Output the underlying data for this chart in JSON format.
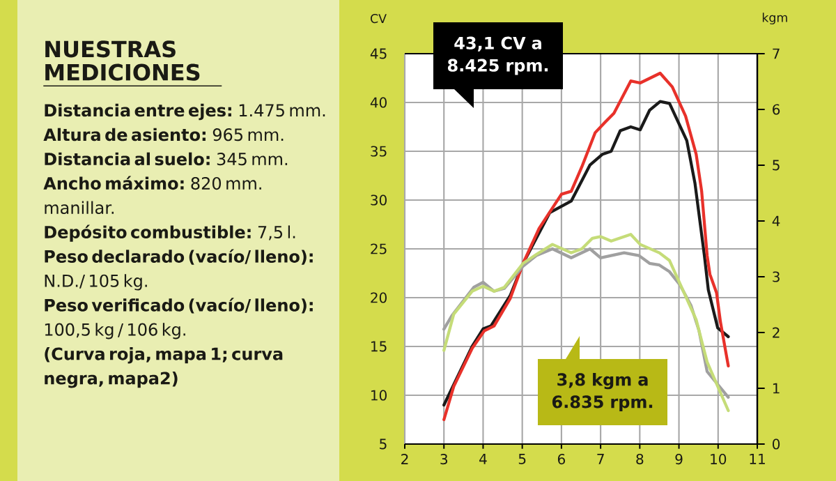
{
  "chart_data": [
    {
      "type": "other",
      "title": "NUESTRAS MEDICIONES",
      "annotations": [
        "**Distancia entre ejes:** 1.475 mm.",
        "**Altura de asiento:** 965 mm.",
        "**Distancia al suelo:** 345 mm.",
        "**Ancho máximo:** 820 mm. manillar.",
        "**Depósito combustible:** 7,5 l.",
        "**Peso declarado (vacío/ lleno):** N.D./ 105 kg.",
        "**Peso verificado (vacío/ lleno):** 100,5 kg / 106 kg.",
        "**(Curva roja, mapa 1; curva negra, mapa2)**"
      ]
    },
    {
      "type": "line",
      "ylabel": "CV",
      "y2label": "kgm",
      "grid": true,
      "xlim": [
        2,
        11
      ],
      "xticks": [
        2,
        3,
        4,
        5,
        6,
        7,
        8,
        9,
        10,
        11
      ],
      "ylim": [
        5,
        45
      ],
      "yticks": [
        5,
        10,
        15,
        20,
        25,
        30,
        35,
        40,
        45
      ],
      "y2lim": [
        0,
        7
      ],
      "y2ticks": [
        0,
        1,
        2,
        3,
        4,
        5,
        6,
        7
      ],
      "annotations": [
        "43,1 CV a 8.425 rpm.",
        "3,8 kgm a 6.835 rpm."
      ],
      "series": [
        {
          "color": "#a0a0a0",
          "axis": "y2",
          "x": [
            3.0,
            3.2,
            3.76,
            4.0,
            4.28,
            4.54,
            5.02,
            5.36,
            5.77,
            6.25,
            6.73,
            7.0,
            7.6,
            7.98,
            8.25,
            8.5,
            8.76,
            9.03,
            9.31,
            9.51,
            9.72,
            10.26
          ],
          "values": [
            2.06,
            2.3,
            2.81,
            2.9,
            2.74,
            2.79,
            3.19,
            3.38,
            3.5,
            3.34,
            3.5,
            3.34,
            3.43,
            3.38,
            3.24,
            3.21,
            3.09,
            2.85,
            2.48,
            2.04,
            1.3,
            0.84
          ]
        },
        {
          "color": "#c5dc78",
          "axis": "y2",
          "x": [
            3.0,
            3.25,
            3.72,
            4.0,
            4.28,
            4.54,
            5.02,
            5.36,
            5.77,
            6.25,
            6.52,
            6.79,
            7.0,
            7.27,
            7.77,
            8.01,
            8.5,
            8.76,
            9.1,
            9.44,
            9.72,
            10.26
          ],
          "values": [
            1.68,
            2.33,
            2.74,
            2.83,
            2.74,
            2.81,
            3.24,
            3.4,
            3.58,
            3.43,
            3.5,
            3.69,
            3.72,
            3.64,
            3.76,
            3.58,
            3.43,
            3.29,
            2.76,
            2.23,
            1.47,
            0.6
          ]
        },
        {
          "color": "#1a1a1a",
          "x": [
            3.0,
            3.3,
            3.72,
            4.0,
            4.2,
            4.69,
            5.02,
            5.7,
            6.25,
            6.73,
            7.05,
            7.27,
            7.5,
            7.77,
            8.01,
            8.25,
            8.52,
            8.76,
            9.2,
            9.41,
            9.65,
            9.75,
            9.99,
            10.26
          ],
          "values": [
            9.0,
            11.5,
            15.0,
            16.8,
            17.1,
            20.2,
            23.5,
            28.7,
            29.9,
            33.6,
            34.7,
            35.0,
            37.1,
            37.5,
            37.2,
            39.2,
            40.1,
            39.9,
            36.1,
            31.7,
            24.3,
            20.8,
            16.9,
            16.0
          ]
        },
        {
          "color": "#e8312a",
          "x": [
            3.0,
            3.25,
            3.72,
            4.03,
            4.28,
            4.69,
            5.02,
            5.43,
            6.0,
            6.25,
            6.52,
            6.86,
            7.12,
            7.34,
            7.77,
            8.01,
            8.52,
            8.83,
            9.17,
            9.44,
            9.58,
            9.72,
            9.79,
            9.96,
            10.06,
            10.26
          ],
          "values": [
            7.5,
            10.9,
            14.8,
            16.6,
            17.1,
            19.9,
            23.5,
            27.1,
            30.6,
            30.9,
            33.4,
            36.9,
            38.0,
            38.9,
            42.2,
            42.0,
            43.0,
            41.6,
            38.6,
            34.7,
            30.9,
            24.3,
            22.4,
            20.5,
            17.5,
            13.0
          ]
        }
      ]
    }
  ]
}
